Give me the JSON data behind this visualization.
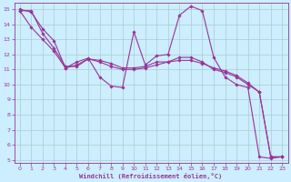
{
  "xlabel": "Windchill (Refroidissement éolien,°C)",
  "xlim": [
    -0.5,
    23.5
  ],
  "ylim": [
    4.8,
    15.4
  ],
  "xticks": [
    0,
    1,
    2,
    3,
    4,
    5,
    6,
    7,
    8,
    9,
    10,
    11,
    12,
    13,
    14,
    15,
    16,
    17,
    18,
    19,
    20,
    21,
    22,
    23
  ],
  "yticks": [
    5,
    6,
    7,
    8,
    9,
    10,
    11,
    12,
    13,
    14,
    15
  ],
  "line_color": "#993399",
  "bg_color": "#cceeff",
  "grid_color": "#aacccc",
  "line1_x": [
    0,
    1,
    2,
    3,
    4,
    5,
    6,
    7,
    8,
    9,
    10,
    11,
    12,
    13,
    14,
    15,
    16,
    17,
    18,
    19,
    20,
    21,
    22,
    23
  ],
  "line1_y": [
    15.0,
    14.8,
    13.7,
    12.9,
    11.1,
    11.5,
    11.75,
    10.5,
    9.9,
    9.8,
    13.5,
    11.3,
    11.9,
    12.0,
    14.6,
    15.2,
    14.9,
    11.8,
    10.5,
    10.0,
    9.8,
    5.2,
    5.1,
    5.2
  ],
  "line2_x": [
    0,
    1,
    2,
    3,
    4,
    5,
    6,
    7,
    8,
    9,
    10,
    11,
    12,
    13,
    14,
    15,
    16,
    17,
    18,
    19,
    20,
    21,
    22,
    23
  ],
  "line2_y": [
    14.9,
    13.8,
    13.0,
    12.2,
    11.1,
    11.3,
    11.7,
    11.5,
    11.2,
    11.0,
    11.0,
    11.1,
    11.3,
    11.5,
    11.8,
    11.8,
    11.5,
    11.0,
    10.8,
    10.5,
    10.0,
    9.5,
    5.2,
    5.2
  ],
  "line3_x": [
    0,
    1,
    2,
    3,
    4,
    5,
    6,
    7,
    8,
    9,
    10,
    11,
    12,
    13,
    14,
    15,
    16,
    17,
    18,
    19,
    20,
    21,
    22,
    23
  ],
  "line3_y": [
    14.9,
    14.9,
    13.4,
    12.4,
    11.2,
    11.2,
    11.7,
    11.6,
    11.4,
    11.1,
    11.1,
    11.2,
    11.5,
    11.5,
    11.6,
    11.6,
    11.4,
    11.1,
    10.9,
    10.6,
    10.1,
    9.5,
    5.2,
    5.2
  ]
}
